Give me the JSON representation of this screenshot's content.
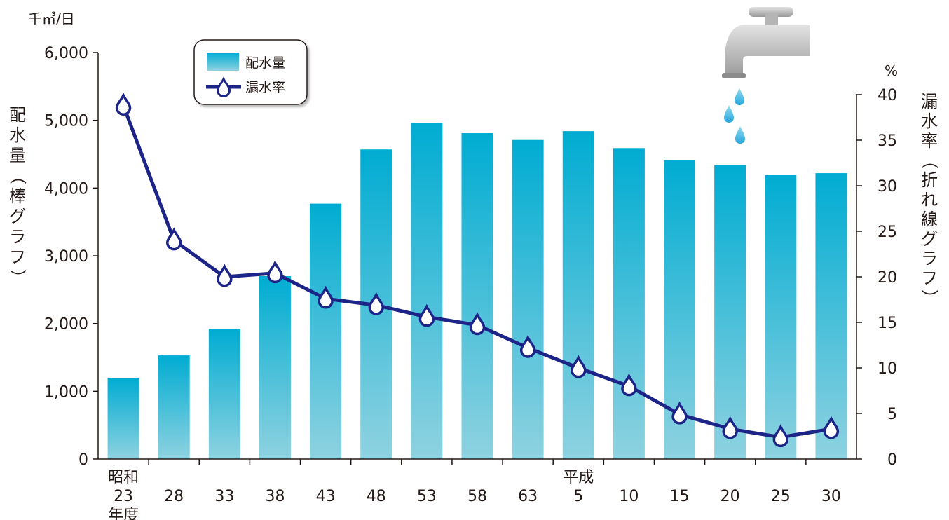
{
  "chart_data": {
    "type": "bar+line",
    "x": [
      "昭和23年度",
      "28",
      "33",
      "38",
      "43",
      "48",
      "53",
      "58",
      "63",
      "平成5",
      "10",
      "15",
      "20",
      "25",
      "30"
    ],
    "x_tick_lines": [
      [
        "昭和",
        "23",
        "年度"
      ],
      [
        "28"
      ],
      [
        "33"
      ],
      [
        "38"
      ],
      [
        "43"
      ],
      [
        "48"
      ],
      [
        "53"
      ],
      [
        "58"
      ],
      [
        "63"
      ],
      [
        "平成",
        "5"
      ],
      [
        "10"
      ],
      [
        "15"
      ],
      [
        "20"
      ],
      [
        "25"
      ],
      [
        "30"
      ]
    ],
    "series": [
      {
        "name": "配水量",
        "type": "bar",
        "axis": "left",
        "values": [
          1200,
          1530,
          1920,
          2700,
          3770,
          4570,
          4960,
          4810,
          4710,
          4840,
          4590,
          4410,
          4340,
          4190,
          4220
        ]
      },
      {
        "name": "漏水率",
        "type": "line",
        "axis": "right",
        "values": [
          38.8,
          24.0,
          20.0,
          20.4,
          17.6,
          16.9,
          15.6,
          14.7,
          12.2,
          10.0,
          8.0,
          4.9,
          3.3,
          2.4,
          3.3
        ]
      }
    ],
    "left_axis": {
      "unit": "千㎥/日",
      "label": "配水量（棒グラフ）",
      "ylim": [
        0,
        6000
      ],
      "ticks": [
        "6,000",
        "5,000",
        "4,000",
        "3,000",
        "2,000",
        "1,000",
        "0"
      ],
      "tick_values": [
        6000,
        5000,
        4000,
        3000,
        2000,
        1000,
        0
      ]
    },
    "right_axis": {
      "unit": "%",
      "label": "漏水率（折れ線グラフ）",
      "ylim": [
        0,
        40
      ],
      "ticks": [
        "40",
        "35",
        "30",
        "25",
        "20",
        "15",
        "10",
        "5",
        "0"
      ],
      "tick_values": [
        40,
        35,
        30,
        25,
        20,
        15,
        10,
        5,
        0
      ]
    },
    "legend_placement": "top-left",
    "grid": false,
    "colors": {
      "bar_top": "#00acd2",
      "bar_bottom": "#8ed2e0",
      "line": "#1d2487",
      "marker_fill": "#ffffff",
      "axis": "#231815"
    },
    "decoration": "faucet-with-water-drops-icon"
  }
}
